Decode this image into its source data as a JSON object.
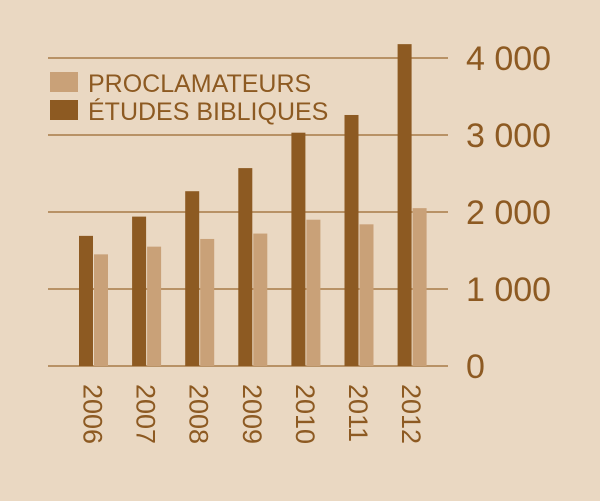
{
  "chart_data": {
    "type": "bar",
    "categories": [
      "2006",
      "2007",
      "2008",
      "2009",
      "2010",
      "2011",
      "2012"
    ],
    "series": [
      {
        "name": "PROCLAMATEURS",
        "color": "#c9a178",
        "values": [
          1450,
          1550,
          1650,
          1720,
          1900,
          1840,
          2050
        ]
      },
      {
        "name": "ÉTUDES BIBLIQUES",
        "color": "#8d5a22",
        "values": [
          1690,
          1940,
          2270,
          2570,
          3030,
          3260,
          4180
        ]
      }
    ],
    "ylim": [
      0,
      4000
    ],
    "yticks": [
      0,
      1000,
      2000,
      3000,
      4000
    ],
    "ytick_labels": [
      "0",
      "1 000",
      "2 000",
      "3 000",
      "4 000"
    ],
    "grid": true,
    "legend": "top-left",
    "y_axis_side": "right",
    "x_labels_rotated": true
  },
  "colors": {
    "background": "#ead8c2",
    "text": "#8d5a22",
    "grid": "#a87a47"
  }
}
